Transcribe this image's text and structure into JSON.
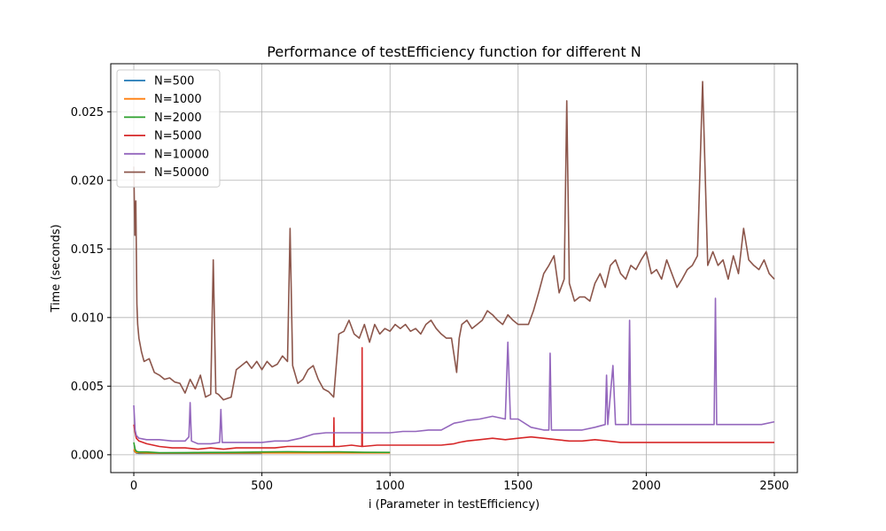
{
  "chart_data": {
    "type": "line",
    "title": "Performance of testEfficiency function for different N",
    "xlabel": "i (Parameter in testEfficiency)",
    "ylabel": "Time (seconds)",
    "xlim": [
      -90,
      2590
    ],
    "ylim": [
      -0.0013,
      0.0285
    ],
    "xticks": [
      0,
      500,
      1000,
      1500,
      2000,
      2500
    ],
    "xtick_labels": [
      "0",
      "500",
      "1000",
      "1500",
      "2000",
      "2500"
    ],
    "yticks": [
      0.0,
      0.005,
      0.01,
      0.015,
      0.02,
      0.025
    ],
    "ytick_labels": [
      "0.000",
      "0.005",
      "0.010",
      "0.015",
      "0.020",
      "0.025"
    ],
    "grid": true,
    "legend_position": "top-left",
    "series": [
      {
        "name": "N=500",
        "color": "#1f77b4",
        "x": [
          0,
          5,
          10,
          20,
          50,
          100,
          200,
          300,
          400,
          500
        ],
        "y": [
          0.0003,
          0.0002,
          0.00012,
          0.0001,
          0.0001,
          0.0001,
          0.0001,
          0.0001,
          0.0001,
          0.0001
        ]
      },
      {
        "name": "N=1000",
        "color": "#ff7f0e",
        "x": [
          0,
          5,
          10,
          50,
          100,
          200,
          300,
          400,
          500,
          600,
          700,
          800,
          900,
          1000
        ],
        "y": [
          0.0004,
          0.0002,
          0.00015,
          0.00012,
          0.00012,
          0.00012,
          0.00012,
          0.00012,
          0.00013,
          0.00013,
          0.00013,
          0.00013,
          0.00013,
          0.00013
        ]
      },
      {
        "name": "N=2000",
        "color": "#2ca02c",
        "x": [
          0,
          5,
          10,
          20,
          50,
          100,
          200,
          300,
          400,
          500,
          600,
          700,
          800,
          900,
          1000
        ],
        "y": [
          0.0009,
          0.0004,
          0.00025,
          0.0002,
          0.0002,
          0.00015,
          0.00016,
          0.00017,
          0.00018,
          0.0002,
          0.00022,
          0.0002,
          0.00021,
          0.00018,
          0.00017
        ]
      },
      {
        "name": "N=5000",
        "color": "#d62728",
        "x": [
          0,
          5,
          10,
          20,
          50,
          100,
          150,
          200,
          250,
          300,
          350,
          400,
          450,
          500,
          550,
          600,
          650,
          700,
          750,
          780,
          781,
          782,
          800,
          850,
          890,
          891,
          892,
          950,
          1000,
          1050,
          1100,
          1150,
          1200,
          1250,
          1270,
          1300,
          1350,
          1400,
          1450,
          1500,
          1550,
          1600,
          1650,
          1700,
          1750,
          1800,
          1850,
          1900,
          1950,
          2000,
          2100,
          2200,
          2300,
          2400,
          2500
        ],
        "y": [
          0.0022,
          0.0016,
          0.0012,
          0.001,
          0.0008,
          0.0006,
          0.0005,
          0.0005,
          0.0004,
          0.0005,
          0.0004,
          0.0005,
          0.0005,
          0.0005,
          0.0005,
          0.0006,
          0.0006,
          0.0006,
          0.0006,
          0.0006,
          0.0027,
          0.0006,
          0.0006,
          0.0007,
          0.0006,
          0.0078,
          0.0006,
          0.0007,
          0.0007,
          0.0007,
          0.0007,
          0.0007,
          0.0007,
          0.0008,
          0.0009,
          0.001,
          0.0011,
          0.0012,
          0.0011,
          0.0012,
          0.0013,
          0.0012,
          0.0011,
          0.001,
          0.001,
          0.0011,
          0.001,
          0.0009,
          0.0009,
          0.0009,
          0.0009,
          0.0009,
          0.0009,
          0.0009,
          0.0009
        ]
      },
      {
        "name": "N=10000",
        "color": "#9467bd",
        "x": [
          0,
          5,
          10,
          20,
          50,
          100,
          150,
          200,
          215,
          220,
          225,
          250,
          300,
          335,
          340,
          345,
          400,
          450,
          500,
          550,
          600,
          650,
          700,
          750,
          800,
          850,
          900,
          950,
          1000,
          1050,
          1100,
          1150,
          1200,
          1250,
          1280,
          1300,
          1350,
          1400,
          1450,
          1460,
          1470,
          1500,
          1550,
          1600,
          1620,
          1625,
          1630,
          1650,
          1700,
          1750,
          1800,
          1840,
          1845,
          1850,
          1870,
          1880,
          1900,
          1930,
          1935,
          1940,
          1950,
          2000,
          2050,
          2100,
          2150,
          2200,
          2250,
          2265,
          2270,
          2275,
          2300,
          2350,
          2400,
          2450,
          2500
        ],
        "y": [
          0.0036,
          0.0018,
          0.0014,
          0.0012,
          0.0011,
          0.0011,
          0.001,
          0.001,
          0.0013,
          0.0038,
          0.001,
          0.0008,
          0.0008,
          0.0009,
          0.0033,
          0.0009,
          0.0009,
          0.0009,
          0.0009,
          0.001,
          0.001,
          0.0012,
          0.0015,
          0.0016,
          0.0016,
          0.0016,
          0.0016,
          0.0016,
          0.0016,
          0.0017,
          0.0017,
          0.0018,
          0.0018,
          0.0023,
          0.0024,
          0.0025,
          0.0026,
          0.0028,
          0.0026,
          0.0082,
          0.0026,
          0.0026,
          0.002,
          0.0018,
          0.0018,
          0.0074,
          0.0018,
          0.0018,
          0.0018,
          0.0018,
          0.002,
          0.0022,
          0.0058,
          0.0022,
          0.0065,
          0.0022,
          0.0022,
          0.0022,
          0.0098,
          0.0022,
          0.0022,
          0.0022,
          0.0022,
          0.0022,
          0.0022,
          0.0022,
          0.0022,
          0.0022,
          0.0114,
          0.0022,
          0.0022,
          0.0022,
          0.0022,
          0.0022,
          0.0024
        ]
      },
      {
        "name": "N=50000",
        "color": "#8c564b",
        "x": [
          0,
          4,
          8,
          12,
          15,
          20,
          30,
          40,
          60,
          80,
          100,
          120,
          140,
          160,
          180,
          200,
          220,
          240,
          260,
          280,
          300,
          310,
          320,
          330,
          350,
          380,
          400,
          420,
          440,
          460,
          480,
          500,
          520,
          540,
          560,
          580,
          600,
          610,
          620,
          640,
          660,
          680,
          700,
          720,
          740,
          760,
          780,
          800,
          820,
          840,
          860,
          880,
          900,
          920,
          940,
          960,
          980,
          1000,
          1020,
          1040,
          1060,
          1080,
          1100,
          1120,
          1140,
          1160,
          1180,
          1200,
          1220,
          1240,
          1260,
          1270,
          1280,
          1300,
          1320,
          1340,
          1360,
          1380,
          1400,
          1420,
          1440,
          1460,
          1480,
          1500,
          1520,
          1540,
          1560,
          1580,
          1600,
          1620,
          1640,
          1660,
          1680,
          1690,
          1700,
          1720,
          1740,
          1760,
          1780,
          1800,
          1820,
          1840,
          1860,
          1880,
          1900,
          1920,
          1940,
          1960,
          1980,
          2000,
          2020,
          2040,
          2060,
          2080,
          2100,
          2120,
          2140,
          2160,
          2180,
          2200,
          2220,
          2240,
          2260,
          2280,
          2300,
          2320,
          2340,
          2360,
          2380,
          2400,
          2420,
          2440,
          2460,
          2480,
          2500
        ],
        "y": [
          0.021,
          0.016,
          0.0185,
          0.011,
          0.0095,
          0.0085,
          0.0075,
          0.0068,
          0.007,
          0.006,
          0.0058,
          0.0055,
          0.0056,
          0.0053,
          0.0052,
          0.0045,
          0.0055,
          0.0048,
          0.0058,
          0.0042,
          0.0044,
          0.0142,
          0.0045,
          0.0044,
          0.004,
          0.0042,
          0.0062,
          0.0065,
          0.0068,
          0.0063,
          0.0068,
          0.0062,
          0.0068,
          0.0064,
          0.0066,
          0.0072,
          0.0068,
          0.0165,
          0.0065,
          0.0052,
          0.0055,
          0.0062,
          0.0065,
          0.0055,
          0.0048,
          0.0046,
          0.0042,
          0.0088,
          0.009,
          0.0098,
          0.0088,
          0.0085,
          0.0095,
          0.0082,
          0.0095,
          0.0088,
          0.0092,
          0.009,
          0.0095,
          0.0092,
          0.0095,
          0.009,
          0.0092,
          0.0088,
          0.0095,
          0.0098,
          0.0092,
          0.0088,
          0.0085,
          0.0085,
          0.006,
          0.0085,
          0.0095,
          0.0098,
          0.0092,
          0.0095,
          0.0098,
          0.0105,
          0.0102,
          0.0098,
          0.0095,
          0.0102,
          0.0098,
          0.0095,
          0.0095,
          0.0095,
          0.0105,
          0.0118,
          0.0132,
          0.0138,
          0.0145,
          0.0118,
          0.0128,
          0.0258,
          0.0125,
          0.0112,
          0.0115,
          0.0115,
          0.0112,
          0.0125,
          0.0132,
          0.0122,
          0.0138,
          0.0142,
          0.0132,
          0.0128,
          0.0138,
          0.0135,
          0.0142,
          0.0148,
          0.0132,
          0.0135,
          0.0128,
          0.0142,
          0.0132,
          0.0122,
          0.0128,
          0.0135,
          0.0138,
          0.0145,
          0.0272,
          0.0138,
          0.0148,
          0.0138,
          0.0142,
          0.0128,
          0.0145,
          0.0132,
          0.0165,
          0.0142,
          0.0138,
          0.0135,
          0.0142,
          0.0132,
          0.0128
        ]
      }
    ]
  }
}
